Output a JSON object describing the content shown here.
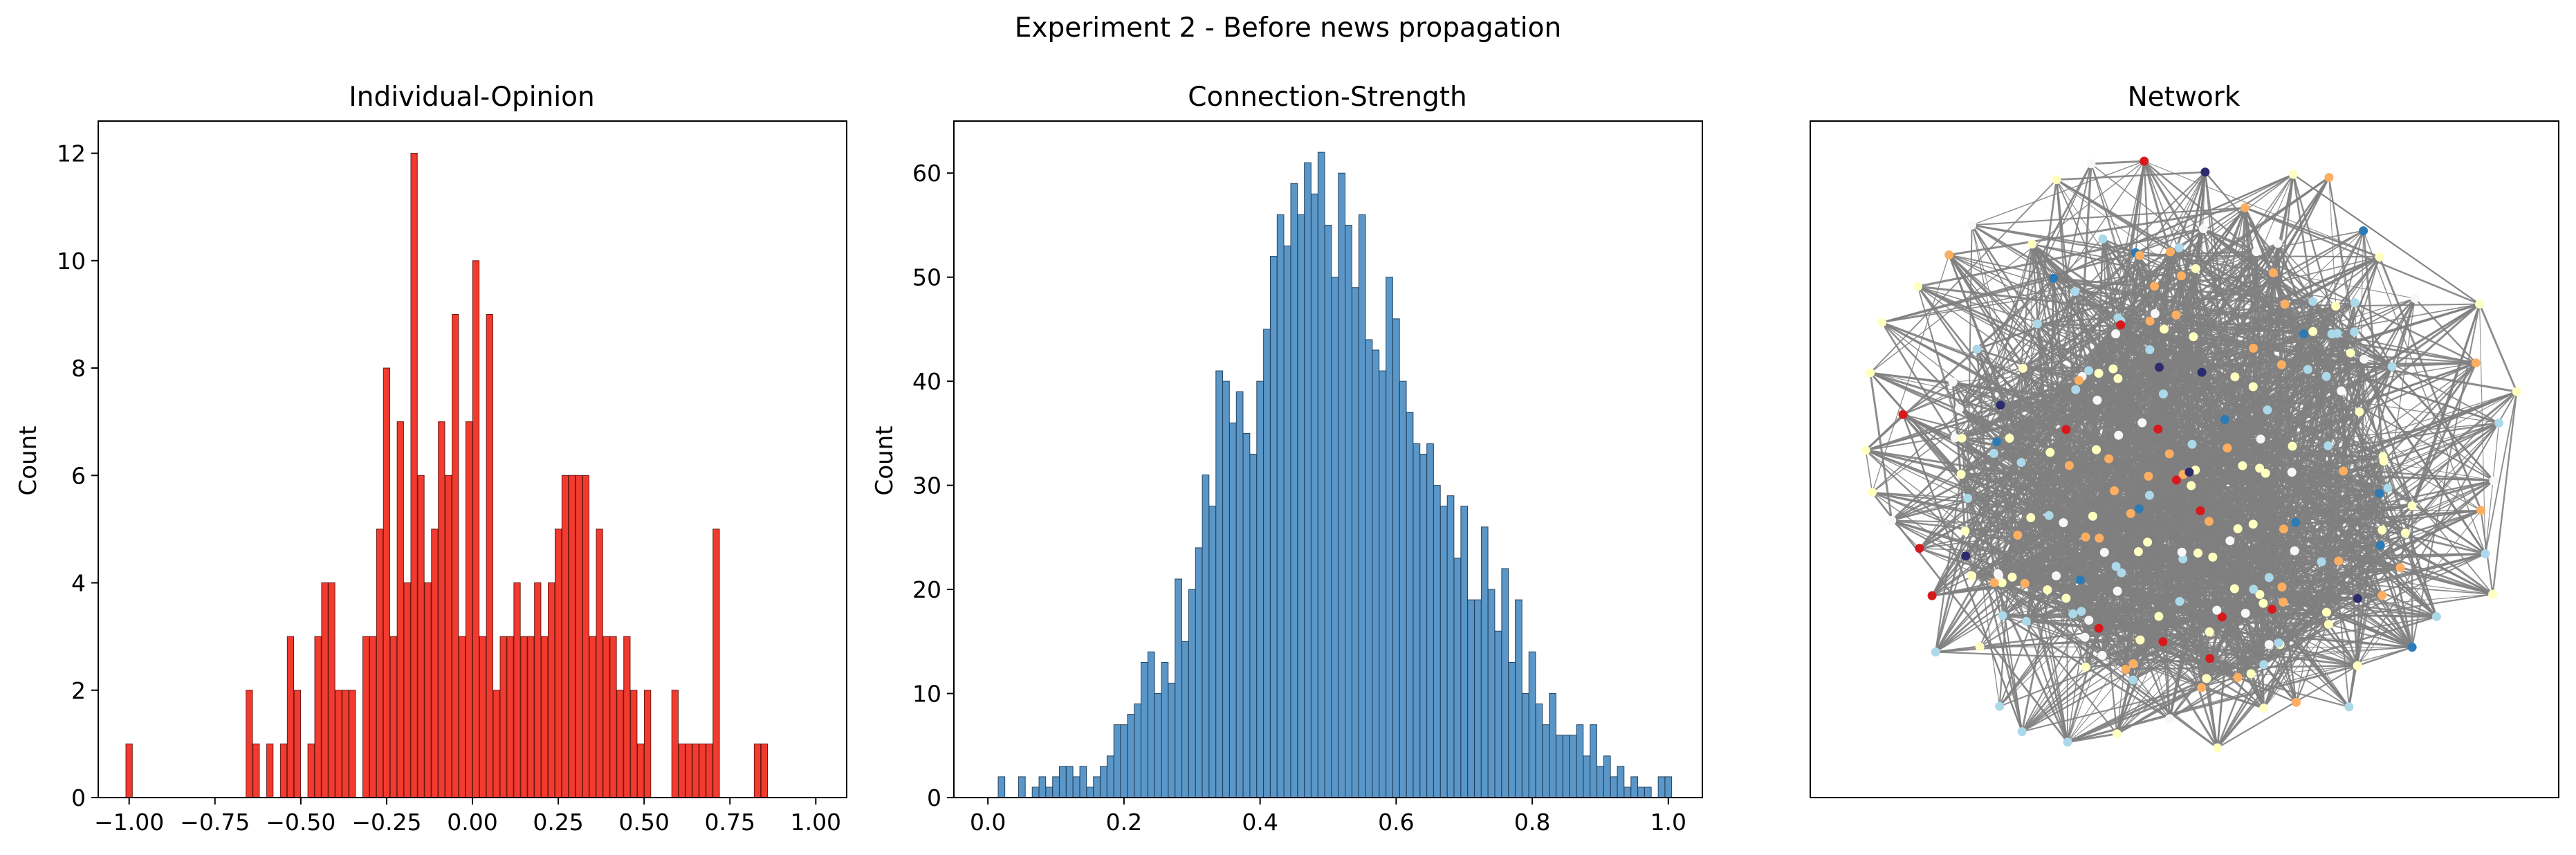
{
  "figure": {
    "suptitle": "Experiment 2 - Before news propagation",
    "colors": {
      "opinion_bar": "#f23a2f",
      "opinion_edge": "#6a1a14",
      "strength_bar": "#5a97c8",
      "strength_edge": "#24435e",
      "edge_line": "#808080",
      "node_palette": [
        "#d7191c",
        "#fdae61",
        "#ffffbf",
        "#abd9e9",
        "#2c7bb6",
        "#f7f7f7",
        "#2b2b6e"
      ]
    },
    "icons": []
  },
  "chart_data": [
    {
      "type": "bar",
      "title": "Individual-Opinion",
      "xlabel": "",
      "ylabel": "Count",
      "bin_width": 0.0186,
      "xlim": [
        -1.09,
        1.09
      ],
      "ylim": [
        0,
        12.6
      ],
      "xticks": [
        -1.0,
        -0.75,
        -0.5,
        -0.25,
        0.0,
        0.25,
        0.5,
        0.75,
        1.0
      ],
      "xtick_labels": [
        "−1.00",
        "−0.75",
        "−0.50",
        "−0.25",
        "0.00",
        "0.25",
        "0.50",
        "0.75",
        "1.00"
      ],
      "yticks": [
        0,
        2,
        4,
        6,
        8,
        10,
        12
      ],
      "ytick_labels": [
        "0",
        "2",
        "4",
        "6",
        "8",
        "10",
        "12"
      ],
      "bins": [
        [
          -1.0,
          1
        ],
        [
          -0.65,
          2
        ],
        [
          -0.63,
          1
        ],
        [
          -0.59,
          1
        ],
        [
          -0.55,
          1
        ],
        [
          -0.53,
          3
        ],
        [
          -0.51,
          2
        ],
        [
          -0.47,
          1
        ],
        [
          -0.45,
          3
        ],
        [
          -0.43,
          4
        ],
        [
          -0.41,
          4
        ],
        [
          -0.39,
          2
        ],
        [
          -0.37,
          2
        ],
        [
          -0.35,
          2
        ],
        [
          -0.31,
          3
        ],
        [
          -0.29,
          3
        ],
        [
          -0.27,
          5
        ],
        [
          -0.25,
          8
        ],
        [
          -0.23,
          3
        ],
        [
          -0.21,
          7
        ],
        [
          -0.19,
          4
        ],
        [
          -0.17,
          12
        ],
        [
          -0.15,
          6
        ],
        [
          -0.13,
          4
        ],
        [
          -0.11,
          5
        ],
        [
          -0.09,
          7
        ],
        [
          -0.07,
          6
        ],
        [
          -0.05,
          9
        ],
        [
          -0.03,
          3
        ],
        [
          -0.01,
          7
        ],
        [
          0.01,
          10
        ],
        [
          0.03,
          3
        ],
        [
          0.05,
          9
        ],
        [
          0.07,
          2
        ],
        [
          0.09,
          3
        ],
        [
          0.11,
          3
        ],
        [
          0.13,
          4
        ],
        [
          0.15,
          3
        ],
        [
          0.17,
          3
        ],
        [
          0.19,
          4
        ],
        [
          0.21,
          3
        ],
        [
          0.23,
          4
        ],
        [
          0.25,
          5
        ],
        [
          0.27,
          6
        ],
        [
          0.29,
          6
        ],
        [
          0.31,
          6
        ],
        [
          0.33,
          6
        ],
        [
          0.35,
          3
        ],
        [
          0.37,
          5
        ],
        [
          0.39,
          3
        ],
        [
          0.41,
          3
        ],
        [
          0.43,
          2
        ],
        [
          0.45,
          3
        ],
        [
          0.47,
          2
        ],
        [
          0.49,
          1
        ],
        [
          0.51,
          2
        ],
        [
          0.59,
          2
        ],
        [
          0.61,
          1
        ],
        [
          0.63,
          1
        ],
        [
          0.65,
          1
        ],
        [
          0.67,
          1
        ],
        [
          0.69,
          1
        ],
        [
          0.71,
          5
        ],
        [
          0.83,
          1
        ],
        [
          0.85,
          1
        ]
      ]
    },
    {
      "type": "bar",
      "title": "Connection-Strength",
      "xlabel": "",
      "ylabel": "Count",
      "bin_width": 0.0098,
      "xlim": [
        -0.05,
        1.05
      ],
      "ylim": [
        0,
        65
      ],
      "xticks": [
        0.0,
        0.2,
        0.4,
        0.6,
        0.8,
        1.0
      ],
      "xtick_labels": [
        "0.0",
        "0.2",
        "0.4",
        "0.6",
        "0.8",
        "1.0"
      ],
      "yticks": [
        0,
        10,
        20,
        30,
        40,
        50,
        60
      ],
      "ytick_labels": [
        "0",
        "10",
        "20",
        "30",
        "40",
        "50",
        "60"
      ],
      "bins": [
        [
          0.02,
          2
        ],
        [
          0.05,
          2
        ],
        [
          0.07,
          1
        ],
        [
          0.08,
          2
        ],
        [
          0.09,
          1
        ],
        [
          0.1,
          2
        ],
        [
          0.11,
          3
        ],
        [
          0.12,
          3
        ],
        [
          0.13,
          2
        ],
        [
          0.14,
          3
        ],
        [
          0.15,
          1
        ],
        [
          0.16,
          2
        ],
        [
          0.17,
          3
        ],
        [
          0.18,
          4
        ],
        [
          0.19,
          7
        ],
        [
          0.2,
          7
        ],
        [
          0.21,
          8
        ],
        [
          0.22,
          9
        ],
        [
          0.23,
          13
        ],
        [
          0.24,
          14
        ],
        [
          0.25,
          10
        ],
        [
          0.26,
          13
        ],
        [
          0.27,
          11
        ],
        [
          0.28,
          21
        ],
        [
          0.29,
          15
        ],
        [
          0.3,
          20
        ],
        [
          0.31,
          24
        ],
        [
          0.32,
          31
        ],
        [
          0.33,
          28
        ],
        [
          0.34,
          41
        ],
        [
          0.35,
          40
        ],
        [
          0.36,
          36
        ],
        [
          0.37,
          39
        ],
        [
          0.38,
          35
        ],
        [
          0.39,
          33
        ],
        [
          0.4,
          40
        ],
        [
          0.41,
          45
        ],
        [
          0.42,
          52
        ],
        [
          0.43,
          56
        ],
        [
          0.44,
          53
        ],
        [
          0.45,
          59
        ],
        [
          0.46,
          56
        ],
        [
          0.47,
          61
        ],
        [
          0.48,
          58
        ],
        [
          0.49,
          62
        ],
        [
          0.5,
          55
        ],
        [
          0.51,
          50
        ],
        [
          0.52,
          60
        ],
        [
          0.53,
          55
        ],
        [
          0.54,
          49
        ],
        [
          0.55,
          56
        ],
        [
          0.56,
          44
        ],
        [
          0.57,
          43
        ],
        [
          0.58,
          41
        ],
        [
          0.59,
          50
        ],
        [
          0.6,
          46
        ],
        [
          0.61,
          40
        ],
        [
          0.62,
          37
        ],
        [
          0.63,
          34
        ],
        [
          0.64,
          33
        ],
        [
          0.65,
          34
        ],
        [
          0.66,
          30
        ],
        [
          0.67,
          28
        ],
        [
          0.68,
          29
        ],
        [
          0.69,
          23
        ],
        [
          0.7,
          28
        ],
        [
          0.71,
          19
        ],
        [
          0.72,
          19
        ],
        [
          0.73,
          26
        ],
        [
          0.74,
          20
        ],
        [
          0.75,
          16
        ],
        [
          0.76,
          22
        ],
        [
          0.77,
          13
        ],
        [
          0.78,
          19
        ],
        [
          0.79,
          10
        ],
        [
          0.8,
          14
        ],
        [
          0.81,
          9
        ],
        [
          0.82,
          7
        ],
        [
          0.83,
          10
        ],
        [
          0.84,
          6
        ],
        [
          0.85,
          6
        ],
        [
          0.86,
          6
        ],
        [
          0.87,
          7
        ],
        [
          0.88,
          4
        ],
        [
          0.89,
          7
        ],
        [
          0.9,
          3
        ],
        [
          0.91,
          4
        ],
        [
          0.92,
          2
        ],
        [
          0.93,
          3
        ],
        [
          0.94,
          1
        ],
        [
          0.95,
          2
        ],
        [
          0.96,
          1
        ],
        [
          0.97,
          1
        ],
        [
          0.99,
          2
        ],
        [
          1.0,
          2
        ]
      ]
    },
    {
      "type": "network",
      "title": "Network",
      "xlabel": "",
      "ylabel": "",
      "xticks": [],
      "yticks": []
    }
  ]
}
